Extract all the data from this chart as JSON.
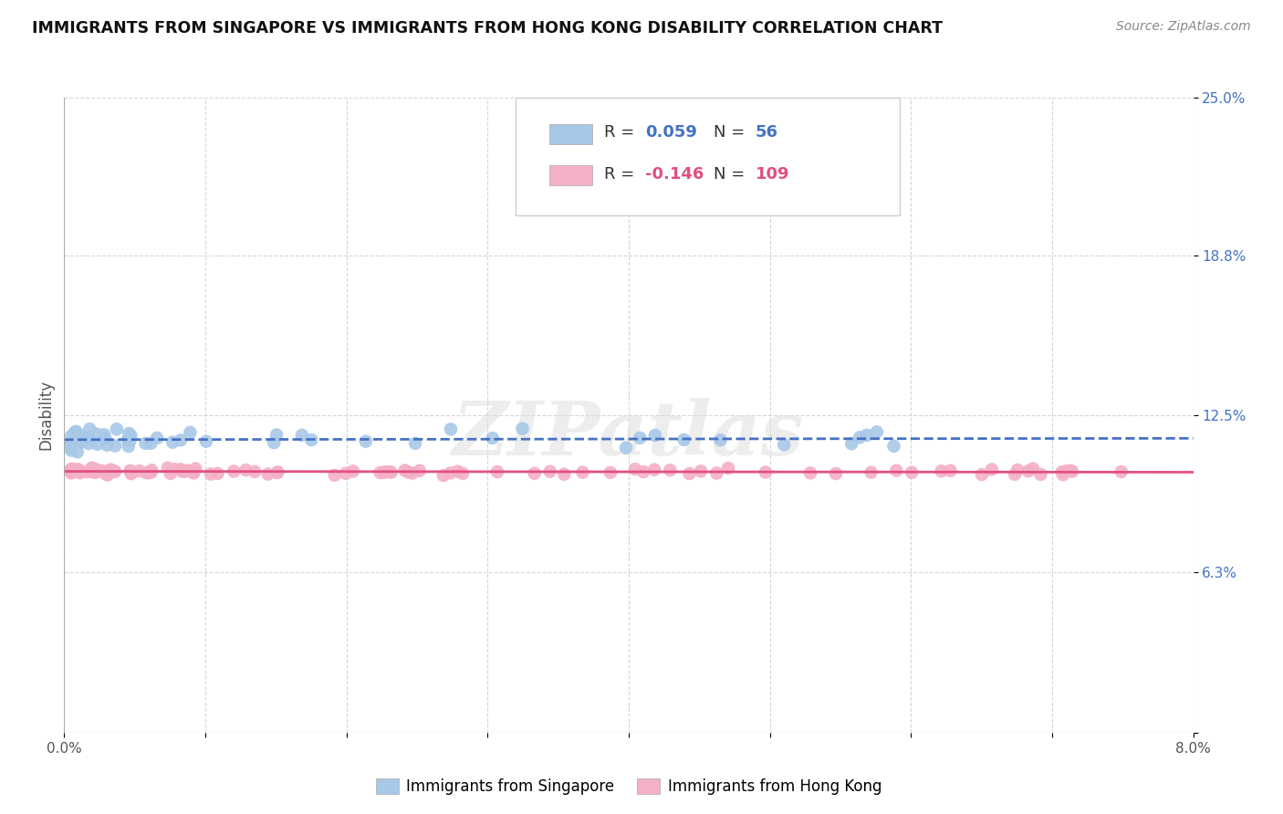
{
  "title": "IMMIGRANTS FROM SINGAPORE VS IMMIGRANTS FROM HONG KONG DISABILITY CORRELATION CHART",
  "source": "Source: ZipAtlas.com",
  "ylabel": "Disability",
  "xlim": [
    0.0,
    0.08
  ],
  "ylim": [
    0.0,
    0.25
  ],
  "singapore_color": "#a8c8e8",
  "hongkong_color": "#f4b0c4",
  "singapore_line_color": "#4472c4",
  "hongkong_line_color": "#e05080",
  "ytick_color": "#4472c4",
  "R_singapore": 0.059,
  "N_singapore": 56,
  "R_hongkong": -0.146,
  "N_hongkong": 109,
  "watermark_text": "ZIPatlas",
  "legend_label_singapore": "Immigrants from Singapore",
  "legend_label_hongkong": "Immigrants from Hong Kong",
  "sg_seed": 12,
  "hk_seed": 7
}
